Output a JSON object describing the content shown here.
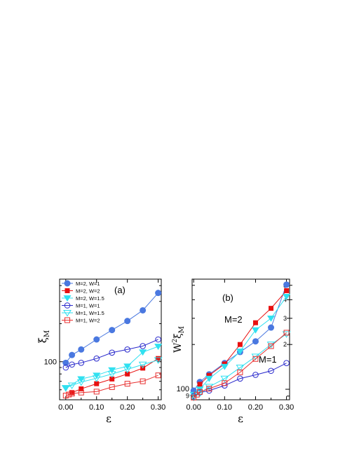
{
  "colors": {
    "m2w1": "#4a78e0",
    "m2w2": "#e81010",
    "m2w15": "#30e0f0",
    "m1w1": "#2a2acc",
    "m1w15": "#30e0f0",
    "m1w2": "#e83030",
    "black": "#000000"
  },
  "chart_data": [
    {
      "type": "line",
      "panel_label": "(a)",
      "xlabel": "ε",
      "ylabel_main": "ξ",
      "ylabel_sub": "M",
      "y_log": true,
      "xlim": [
        -0.02,
        0.31
      ],
      "ylim": [
        50,
        450
      ],
      "xticks": [
        "0.00",
        "0.10",
        "0.20",
        "0.30"
      ],
      "yticks": [
        "100"
      ],
      "legend": "top-left",
      "series": [
        {
          "name": "M=2, W=1",
          "marker": "filled-circle",
          "color_key": "m2w1",
          "x": [
            0.0,
            0.02,
            0.05,
            0.1,
            0.15,
            0.2,
            0.25,
            0.3
          ],
          "y": [
            98,
            113,
            125,
            150,
            178,
            210,
            255,
            350
          ]
        },
        {
          "name": "M=2, W=2",
          "marker": "filled-square",
          "color_key": "m2w2",
          "x": [
            0.02,
            0.05,
            0.1,
            0.15,
            0.2,
            0.25,
            0.3
          ],
          "y": [
            57,
            61,
            67,
            73,
            80,
            89,
            106
          ]
        },
        {
          "name": "M=2, W=1.5",
          "marker": "filled-triangle-down",
          "color_key": "m2w15",
          "x": [
            0.0,
            0.05,
            0.1,
            0.15,
            0.2,
            0.25,
            0.3
          ],
          "y": [
            62,
            73,
            78,
            86,
            92,
            119,
            132
          ]
        },
        {
          "name": "M=1, W=1",
          "marker": "open-circle",
          "color_key": "m1w1",
          "x": [
            0.0,
            0.02,
            0.05,
            0.1,
            0.15,
            0.2,
            0.25,
            0.3
          ],
          "y": [
            90,
            95,
            98,
            106,
            118,
            125,
            133,
            150
          ]
        },
        {
          "name": "M=1, W=1.5",
          "marker": "open-triangle-down",
          "color_key": "m1w15",
          "x": [
            0.0,
            0.02,
            0.05,
            0.1,
            0.15,
            0.2,
            0.25,
            0.3
          ],
          "y": [
            62,
            65,
            69,
            74,
            80,
            87,
            95,
            103
          ]
        },
        {
          "name": "M=1, W=2",
          "marker": "open-square",
          "color_key": "m1w2",
          "x": [
            0.0,
            0.01,
            0.02,
            0.05,
            0.1,
            0.15,
            0.2,
            0.25,
            0.3
          ],
          "y": [
            54,
            55,
            56,
            57,
            58,
            63,
            67,
            70,
            78
          ]
        }
      ]
    },
    {
      "type": "line",
      "panel_label": "(b)",
      "xlabel": "ε",
      "ylabel_main": "W",
      "ylabel_sup": "2",
      "ylabel_greek": "ξ",
      "ylabel_sub": "M",
      "y_log": true,
      "xlim": [
        -0.005,
        0.31
      ],
      "ylim": [
        85,
        550
      ],
      "xticks": [
        "0.00",
        "0.10",
        "0.20",
        "0.30"
      ],
      "yticks": [
        "9",
        "100",
        "2",
        "3",
        "4",
        "5"
      ],
      "annotations": [
        "M=2",
        "M=1"
      ],
      "series": [
        {
          "marker": "filled-circle",
          "color_key": "m2w1",
          "x": [
            0.0,
            0.02,
            0.05,
            0.1,
            0.15,
            0.2,
            0.25,
            0.3
          ],
          "y": [
            98,
            112,
            126,
            150,
            178,
            210,
            260,
            505
          ]
        },
        {
          "marker": "filled-square",
          "color_key": "m2w2",
          "x": [
            0.02,
            0.05,
            0.1,
            0.15,
            0.2,
            0.25,
            0.3
          ],
          "y": [
            108,
            124,
            148,
            200,
            280,
            350,
            460
          ]
        },
        {
          "marker": "filled-triangle-down",
          "color_key": "m2w15",
          "x": [
            0.0,
            0.02,
            0.05,
            0.1,
            0.15,
            0.2,
            0.25,
            0.3
          ],
          "y": [
            92,
            100,
            118,
            142,
            180,
            250,
            300,
            420
          ]
        },
        {
          "marker": "open-circle",
          "color_key": "m1w1",
          "x": [
            0.0,
            0.02,
            0.05,
            0.1,
            0.15,
            0.2,
            0.25,
            0.3
          ],
          "y": [
            90,
            95,
            98,
            106,
            118,
            125,
            133,
            150
          ]
        },
        {
          "marker": "open-triangle-down",
          "color_key": "m1w15",
          "x": [
            0.0,
            0.02,
            0.05,
            0.1,
            0.15,
            0.2,
            0.25,
            0.3
          ],
          "y": [
            88,
            94,
            104,
            118,
            140,
            166,
            200,
            235
          ]
        },
        {
          "marker": "open-square",
          "color_key": "m1w2",
          "x": [
            0.0,
            0.01,
            0.02,
            0.05,
            0.1,
            0.15,
            0.2,
            0.25,
            0.3
          ],
          "y": [
            88,
            92,
            96,
            101,
            110,
            130,
            160,
            195,
            240
          ]
        }
      ]
    }
  ]
}
